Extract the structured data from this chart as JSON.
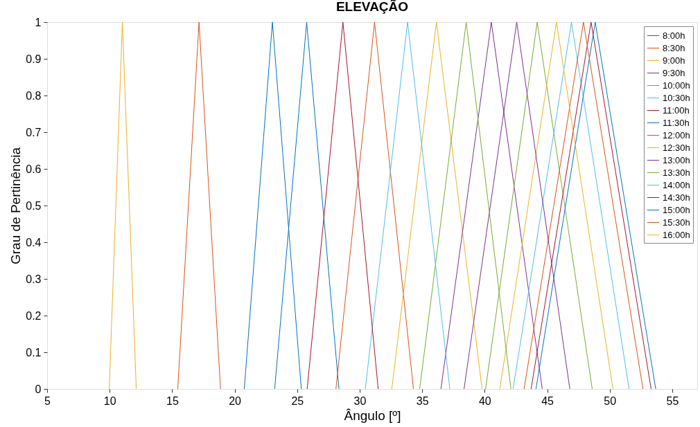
{
  "chart_data": {
    "type": "line",
    "title": "ELEVAÇÃO",
    "xlabel": "Ângulo [º]",
    "ylabel": "Grau de Pertinência",
    "xlim": [
      5,
      57
    ],
    "xticks": [
      5,
      10,
      15,
      20,
      25,
      30,
      35,
      40,
      45,
      50,
      55
    ],
    "ylim": [
      0,
      1
    ],
    "yticks": [
      0,
      0.1,
      0.2,
      0.3,
      0.4,
      0.5,
      0.6,
      0.7,
      0.8,
      0.9,
      1
    ],
    "grid": false,
    "legend": "top right",
    "marker": "none",
    "line_style": "solid",
    "series": [
      {
        "name": "8:00h",
        "color": "#0072bd",
        "x": [
          23.2,
          25.76,
          28.34
        ],
        "values": [
          0,
          1,
          0
        ]
      },
      {
        "name": "8:30h",
        "color": "#d95319",
        "x": [
          28.1,
          31.19,
          34.3
        ],
        "values": [
          0,
          1,
          0
        ]
      },
      {
        "name": "9:00h",
        "color": "#edb120",
        "x": [
          32.57,
          36.14,
          39.79
        ],
        "values": [
          0,
          1,
          0
        ]
      },
      {
        "name": "9:30h",
        "color": "#7e2f8e",
        "x": [
          36.5,
          40.53,
          44.6
        ],
        "values": [
          0,
          1,
          0
        ]
      },
      {
        "name": "10:00h",
        "color": "#77ac30",
        "x": [
          40.07,
          44.2,
          48.6
        ],
        "values": [
          0,
          1,
          0
        ]
      },
      {
        "name": "10:30h",
        "color": "#4dbeee",
        "x": [
          42.27,
          46.94,
          51.55
        ],
        "values": [
          0,
          1,
          0
        ]
      },
      {
        "name": "11:00h",
        "color": "#a2142f",
        "x": [
          43.71,
          48.51,
          53.31
        ],
        "values": [
          0,
          1,
          0
        ]
      },
      {
        "name": "11:30h",
        "color": "#0072bd",
        "x": [
          44.1,
          48.84,
          53.68
        ],
        "values": [
          0,
          1,
          0
        ]
      },
      {
        "name": "12:00h",
        "color": "#d95319",
        "x": [
          43.15,
          47.9,
          52.66
        ],
        "values": [
          0,
          1,
          0
        ]
      },
      {
        "name": "12:30h",
        "color": "#edb120",
        "x": [
          41.21,
          45.74,
          50.26
        ],
        "values": [
          0,
          1,
          0
        ]
      },
      {
        "name": "13:00h",
        "color": "#7e2f8e",
        "x": [
          38.35,
          42.56,
          46.81
        ],
        "values": [
          0,
          1,
          0
        ]
      },
      {
        "name": "13:30h",
        "color": "#77ac30",
        "x": [
          34.8,
          38.52,
          42.1
        ],
        "values": [
          0,
          1,
          0
        ]
      },
      {
        "name": "14:00h",
        "color": "#4dbeee",
        "x": [
          30.45,
          33.83,
          37.21
        ],
        "values": [
          0,
          1,
          0
        ]
      },
      {
        "name": "14:30h",
        "color": "#a2142f",
        "x": [
          25.8,
          28.66,
          31.48
        ],
        "values": [
          0,
          1,
          0
        ]
      },
      {
        "name": "15:00h",
        "color": "#0072bd",
        "x": [
          20.77,
          23.02,
          25.33
        ],
        "values": [
          0,
          1,
          0
        ]
      },
      {
        "name": "15:30h",
        "color": "#d95319",
        "x": [
          15.45,
          17.15,
          18.87
        ],
        "values": [
          0,
          1,
          0
        ]
      },
      {
        "name": "16:00h",
        "color": "#edb120",
        "x": [
          9.97,
          11.02,
          12.13
        ],
        "values": [
          0,
          1,
          0
        ]
      }
    ]
  }
}
